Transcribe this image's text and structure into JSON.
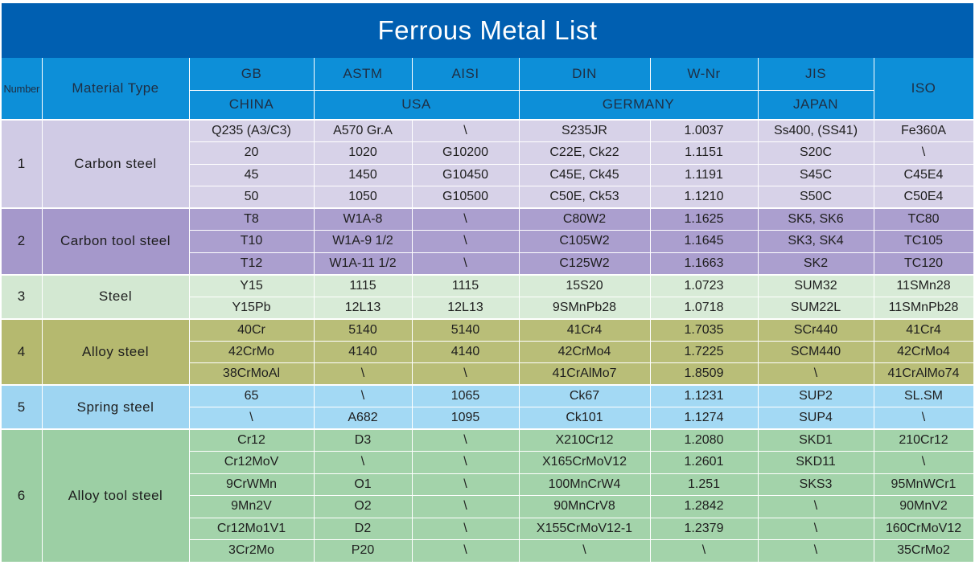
{
  "title": "Ferrous Metal List",
  "header": {
    "number": "Number",
    "material_type": "Material Type",
    "gb": "GB",
    "astm": "ASTM",
    "aisi": "AISI",
    "din": "DIN",
    "wnr": "W-Nr",
    "jis": "JIS",
    "iso": "ISO",
    "china": "CHINA",
    "usa": "USA",
    "germany": "GERMANY",
    "japan": "JAPAN"
  },
  "groups": [
    {
      "number": "1",
      "type": "Carbon steel",
      "color": "#d7d2e8",
      "rows": [
        [
          "Q235 (A3/C3)",
          "A570 Gr.A",
          "\\",
          "S235JR",
          "1.0037",
          "Ss400, (SS41)",
          "Fe360A"
        ],
        [
          "20",
          "1020",
          "G10200",
          "C22E, Ck22",
          "1.1151",
          "S20C",
          "\\"
        ],
        [
          "45",
          "1450",
          "G10450",
          "C45E, Ck45",
          "1.1191",
          "S45C",
          "C45E4"
        ],
        [
          "50",
          "1050",
          "G10500",
          "C50E, Ck53",
          "1.1210",
          "S50C",
          "C50E4"
        ]
      ]
    },
    {
      "number": "2",
      "type": "Carbon tool steel",
      "color": "#ab9fcf",
      "rows": [
        [
          "T8",
          "W1A-8",
          "\\",
          "C80W2",
          "1.1625",
          "SK5, SK6",
          "TC80"
        ],
        [
          "T10",
          "W1A-9 1/2",
          "\\",
          "C105W2",
          "1.1645",
          "SK3, SK4",
          "TC105"
        ],
        [
          "T12",
          "W1A-11 1/2",
          "\\",
          "C125W2",
          "1.1663",
          "SK2",
          "TC120"
        ]
      ]
    },
    {
      "number": "3",
      "type": "Steel",
      "color": "#d8ebd7",
      "rows": [
        [
          "Y15",
          "1115",
          "1115",
          "15S20",
          "1.0723",
          "SUM32",
          "11SMn28"
        ],
        [
          "Y15Pb",
          "12L13",
          "12L13",
          "9SMnPb28",
          "1.0718",
          "SUM22L",
          "11SMnPb28"
        ]
      ]
    },
    {
      "number": "4",
      "type": "Alloy steel",
      "color": "#b9be78",
      "rows": [
        [
          "40Cr",
          "5140",
          "5140",
          "41Cr4",
          "1.7035",
          "SCr440",
          "41Cr4"
        ],
        [
          "42CrMo",
          "4140",
          "4140",
          "42CrMo4",
          "1.7225",
          "SCM440",
          "42CrMo4"
        ],
        [
          "38CrMoAl",
          "\\",
          "\\",
          "41CrAlMo7",
          "1.8509",
          "\\",
          "41CrAlMo74"
        ]
      ]
    },
    {
      "number": "5",
      "type": "Spring steel",
      "color": "#a3d9f4",
      "rows": [
        [
          "65",
          "\\",
          "1065",
          "Ck67",
          "1.1231",
          "SUP2",
          "SL.SM"
        ],
        [
          "\\",
          "A682",
          "1095",
          "Ck101",
          "1.1274",
          "SUP4",
          "\\"
        ]
      ]
    },
    {
      "number": "6",
      "type": "Alloy tool steel",
      "color": "#a3d3aa",
      "rows": [
        [
          "Cr12",
          "D3",
          "\\",
          "X210Cr12",
          "1.2080",
          "SKD1",
          "210Cr12"
        ],
        [
          "Cr12MoV",
          "\\",
          "\\",
          "X165CrMoV12",
          "1.2601",
          "SKD11",
          "\\"
        ],
        [
          "9CrWMn",
          "O1",
          "\\",
          "100MnCrW4",
          "1.251",
          "SKS3",
          "95MnWCr1"
        ],
        [
          "9Mn2V",
          "O2",
          "\\",
          "90MnCrV8",
          "1.2842",
          "\\",
          "90MnV2"
        ],
        [
          "Cr12Mo1V1",
          "D2",
          "\\",
          "X155CrMoV12-1",
          "1.2379",
          "\\",
          "160CrMoV12"
        ],
        [
          "3Cr2Mo",
          "P20",
          "\\",
          "\\",
          "\\",
          "\\",
          "35CrMo2"
        ]
      ]
    }
  ]
}
